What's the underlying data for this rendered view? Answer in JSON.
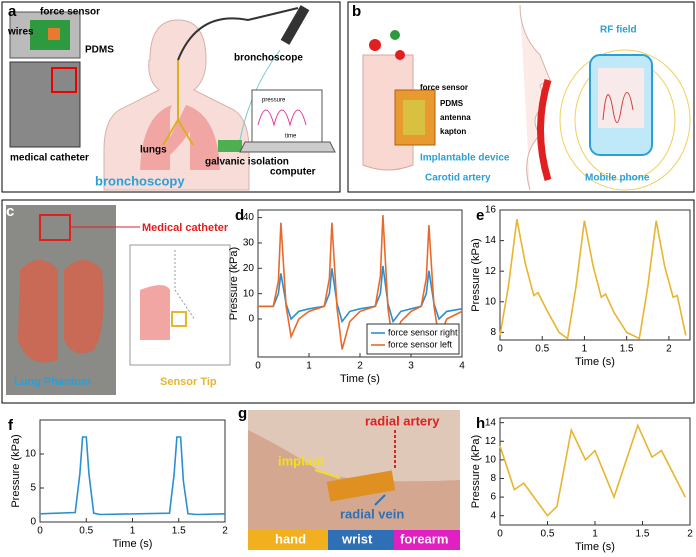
{
  "panels": {
    "a": {
      "letter": "a",
      "wires": "wires",
      "force_sensor": "force sensor",
      "pdms": "PDMS",
      "bronchoscope": "bronchoscope",
      "catheter": "medical catheter",
      "lungs": "lungs",
      "caption": "bronchoscopy",
      "isolation": "galvanic isolation",
      "computer": "computer",
      "screen_y": "pressure",
      "screen_x": "time"
    },
    "b": {
      "letter": "b",
      "rf": "RF field",
      "force_sensor": "force sensor",
      "pdms": "PDMS",
      "antenna": "antenna",
      "kapton": "kapton",
      "device": "Implantable device",
      "artery": "Carotid artery",
      "phone": "Mobile phone"
    },
    "c": {
      "letter": "c",
      "catheter": "Medical catheter",
      "phantom": "Lung Phantom",
      "tip": "Sensor Tip"
    },
    "g": {
      "letter": "g",
      "artery": "radial artery",
      "implant": "implant",
      "vein": "radial vein",
      "hand": "hand",
      "wrist": "wrist",
      "forearm": "forearm"
    }
  },
  "chart_data": [
    {
      "type": "line",
      "panel_label": "d",
      "xlabel": "Time (s)",
      "ylabel": "Pressure (kPa)",
      "legend": "lower right",
      "x": [
        0,
        0.3,
        0.4,
        0.45,
        0.55,
        0.65,
        0.8,
        1.0,
        1.3,
        1.4,
        1.45,
        1.55,
        1.65,
        1.8,
        2.0,
        2.3,
        2.4,
        2.45,
        2.55,
        2.65,
        2.8,
        3.0,
        3.2,
        3.3,
        3.35,
        3.45,
        3.55,
        3.7,
        4.0
      ],
      "series": [
        {
          "name": "force sensor right",
          "color": "#2b8fd0",
          "values": [
            5,
            5,
            10,
            18,
            6,
            0,
            3,
            4,
            5,
            10,
            20,
            6,
            -1,
            3,
            4,
            5,
            10,
            21,
            6,
            -1,
            3,
            4,
            5,
            10,
            19,
            6,
            0,
            3,
            4
          ]
        },
        {
          "name": "force sensor left",
          "color": "#e86a2a",
          "values": [
            5,
            5,
            15,
            38,
            5,
            -7,
            0,
            3,
            5,
            16,
            38,
            4,
            -12,
            -1,
            3,
            5,
            17,
            41,
            4,
            -10,
            -1,
            3,
            5,
            16,
            37,
            5,
            -8,
            0,
            3
          ]
        }
      ],
      "xlim": [
        0,
        4
      ],
      "xticks": [
        0,
        1,
        2,
        3,
        4
      ],
      "ylim": [
        -15,
        43
      ],
      "yticks": [
        0,
        10,
        20,
        30,
        40
      ]
    },
    {
      "type": "line",
      "panel_label": "e",
      "xlabel": "Time (s)",
      "ylabel": "Pressure (kPa)",
      "x": [
        0,
        0.1,
        0.2,
        0.3,
        0.4,
        0.45,
        0.55,
        0.7,
        0.8,
        0.9,
        1.0,
        1.1,
        1.2,
        1.25,
        1.35,
        1.5,
        1.65,
        1.75,
        1.85,
        1.95,
        2.05,
        2.1,
        2.2
      ],
      "series": [
        {
          "color": "#e8b530",
          "values": [
            7.8,
            11,
            15.4,
            12.5,
            10.4,
            10.6,
            9.5,
            8,
            7.6,
            11,
            15.3,
            12.4,
            10.3,
            10.5,
            9.3,
            8,
            7.6,
            11,
            15.3,
            12.3,
            10.3,
            10.4,
            7.8
          ]
        }
      ],
      "xlim": [
        0,
        2.25
      ],
      "xticks": [
        0,
        0.5,
        1,
        1.5,
        2
      ],
      "ylim": [
        7.5,
        16
      ],
      "yticks": [
        8,
        10,
        12,
        14,
        16
      ]
    },
    {
      "type": "line",
      "panel_label": "f",
      "xlabel": "Time (s)",
      "ylabel": "Pressure (kPa)",
      "x": [
        0,
        0.38,
        0.43,
        0.46,
        0.5,
        0.53,
        0.58,
        0.65,
        1.4,
        1.45,
        1.48,
        1.52,
        1.55,
        1.6,
        1.7,
        2
      ],
      "series": [
        {
          "color": "#2b8fd0",
          "values": [
            1.2,
            1.4,
            7,
            12.5,
            12.5,
            7,
            1.3,
            1.1,
            1.3,
            7,
            12.5,
            12.5,
            6,
            1.2,
            1.1,
            1.2
          ]
        }
      ],
      "xlim": [
        0,
        2
      ],
      "xticks": [
        0,
        0.5,
        1,
        1.5,
        2
      ],
      "ylim": [
        0,
        15
      ],
      "yticks": [
        0,
        5,
        10
      ]
    },
    {
      "type": "line",
      "panel_label": "h",
      "xlabel": "Time (s)",
      "ylabel": "Pressure (kPa)",
      "x": [
        0,
        0.15,
        0.25,
        0.5,
        0.6,
        0.75,
        0.9,
        1.0,
        1.2,
        1.45,
        1.6,
        1.7,
        1.95
      ],
      "series": [
        {
          "color": "#e8b530",
          "values": [
            11.5,
            6.8,
            7.5,
            4,
            5,
            13.2,
            10,
            11,
            6,
            13.7,
            10.3,
            11,
            6
          ]
        }
      ],
      "xlim": [
        0,
        2
      ],
      "xticks": [
        0,
        0.5,
        1,
        1.5,
        2
      ],
      "ylim": [
        3,
        14.5
      ],
      "yticks": [
        4,
        6,
        8,
        10,
        12,
        14
      ]
    }
  ]
}
